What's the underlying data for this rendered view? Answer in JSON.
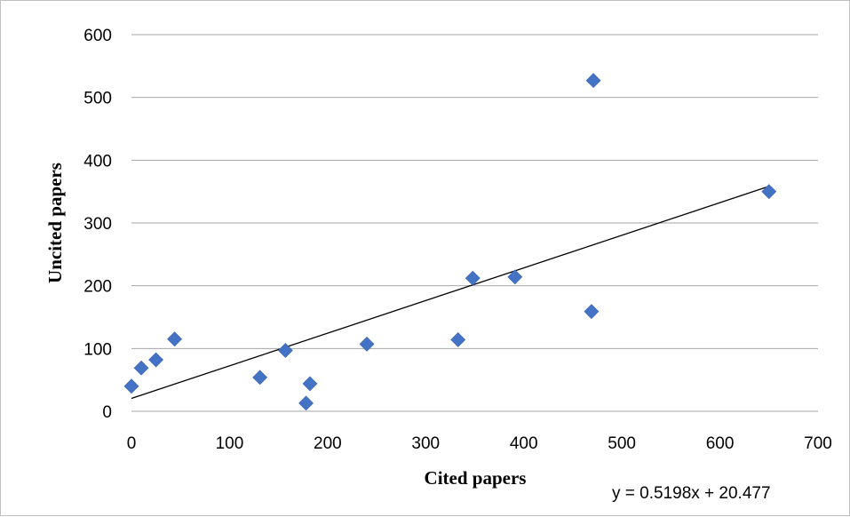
{
  "chart_data": {
    "type": "scatter",
    "xlabel": "Cited papers",
    "ylabel": "Uncited papers",
    "xlim": [
      0,
      700
    ],
    "ylim": [
      0,
      600
    ],
    "x_ticks": [
      0,
      100,
      200,
      300,
      400,
      500,
      600,
      700
    ],
    "y_ticks": [
      0,
      100,
      200,
      300,
      400,
      500,
      600
    ],
    "grid": "horizontal",
    "legend": "none",
    "marker": "diamond",
    "marker_color": "#4472c4",
    "points": [
      {
        "x": 0,
        "y": 40
      },
      {
        "x": 10,
        "y": 69
      },
      {
        "x": 25,
        "y": 82
      },
      {
        "x": 44,
        "y": 115
      },
      {
        "x": 131,
        "y": 54
      },
      {
        "x": 157,
        "y": 97
      },
      {
        "x": 178,
        "y": 13
      },
      {
        "x": 182,
        "y": 44
      },
      {
        "x": 240,
        "y": 107
      },
      {
        "x": 333,
        "y": 114
      },
      {
        "x": 348,
        "y": 212
      },
      {
        "x": 391,
        "y": 214
      },
      {
        "x": 469,
        "y": 159
      },
      {
        "x": 471,
        "y": 527
      },
      {
        "x": 650,
        "y": 350
      }
    ],
    "trendline": {
      "type": "linear",
      "slope": 0.5198,
      "intercept": 20.477,
      "x_range": [
        0,
        650
      ],
      "color": "#000000",
      "equation": "y = 0.5198x + 20.477"
    }
  }
}
